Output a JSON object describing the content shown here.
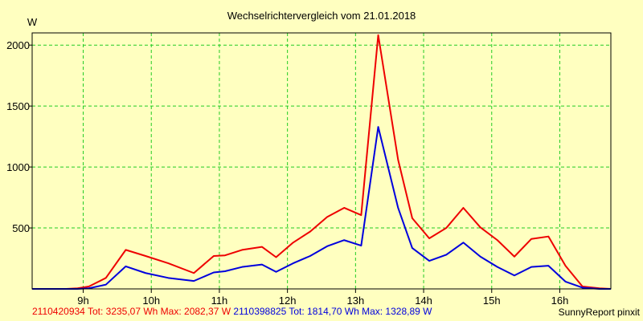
{
  "chart_data": {
    "type": "line",
    "title": "Wechselrichtervergleich vom 21.01.2018",
    "ylabel": "W",
    "xlabel": "",
    "ylim": [
      0,
      2100
    ],
    "xlim": [
      8.25,
      16.75
    ],
    "grid": true,
    "x_ticks": [
      9,
      10,
      11,
      12,
      13,
      14,
      15,
      16
    ],
    "x_tick_labels": [
      "9h",
      "10h",
      "11h",
      "12h",
      "13h",
      "14h",
      "15h",
      "16h"
    ],
    "y_ticks": [
      500,
      1000,
      1500,
      2000
    ],
    "y_tick_labels": [
      "500",
      "1000",
      "1500",
      "2000"
    ],
    "x": [
      8.25,
      8.5,
      8.75,
      8.917,
      9.083,
      9.333,
      9.625,
      9.917,
      10.25,
      10.625,
      10.917,
      11.083,
      11.333,
      11.625,
      11.833,
      12.083,
      12.333,
      12.583,
      12.833,
      13.083,
      13.333,
      13.625,
      13.833,
      14.083,
      14.333,
      14.583,
      14.833,
      15.083,
      15.333,
      15.583,
      15.833,
      16.083,
      16.333,
      16.583,
      16.75
    ],
    "series": [
      {
        "color": "#ee0000",
        "values": [
          0,
          0,
          0,
          5,
          20,
          90,
          320,
          270,
          210,
          130,
          270,
          275,
          320,
          345,
          260,
          380,
          470,
          590,
          665,
          605,
          2082,
          1060,
          580,
          415,
          500,
          665,
          505,
          400,
          265,
          410,
          430,
          190,
          20,
          5,
          0
        ]
      },
      {
        "color": "#0000dd",
        "values": [
          0,
          0,
          0,
          0,
          5,
          35,
          185,
          130,
          90,
          65,
          135,
          145,
          180,
          200,
          140,
          210,
          270,
          350,
          400,
          355,
          1329,
          665,
          335,
          230,
          280,
          380,
          265,
          180,
          110,
          180,
          190,
          60,
          10,
          0,
          0
        ]
      }
    ]
  },
  "footer": {
    "left_red": "2110420934 Tot: 3235,07 Wh Max: 2082,37 W",
    "left_blue": "2110398825 Tot: 1814,70 Wh Max: 1328,89 W",
    "right": "SunnyReport pinxit"
  }
}
